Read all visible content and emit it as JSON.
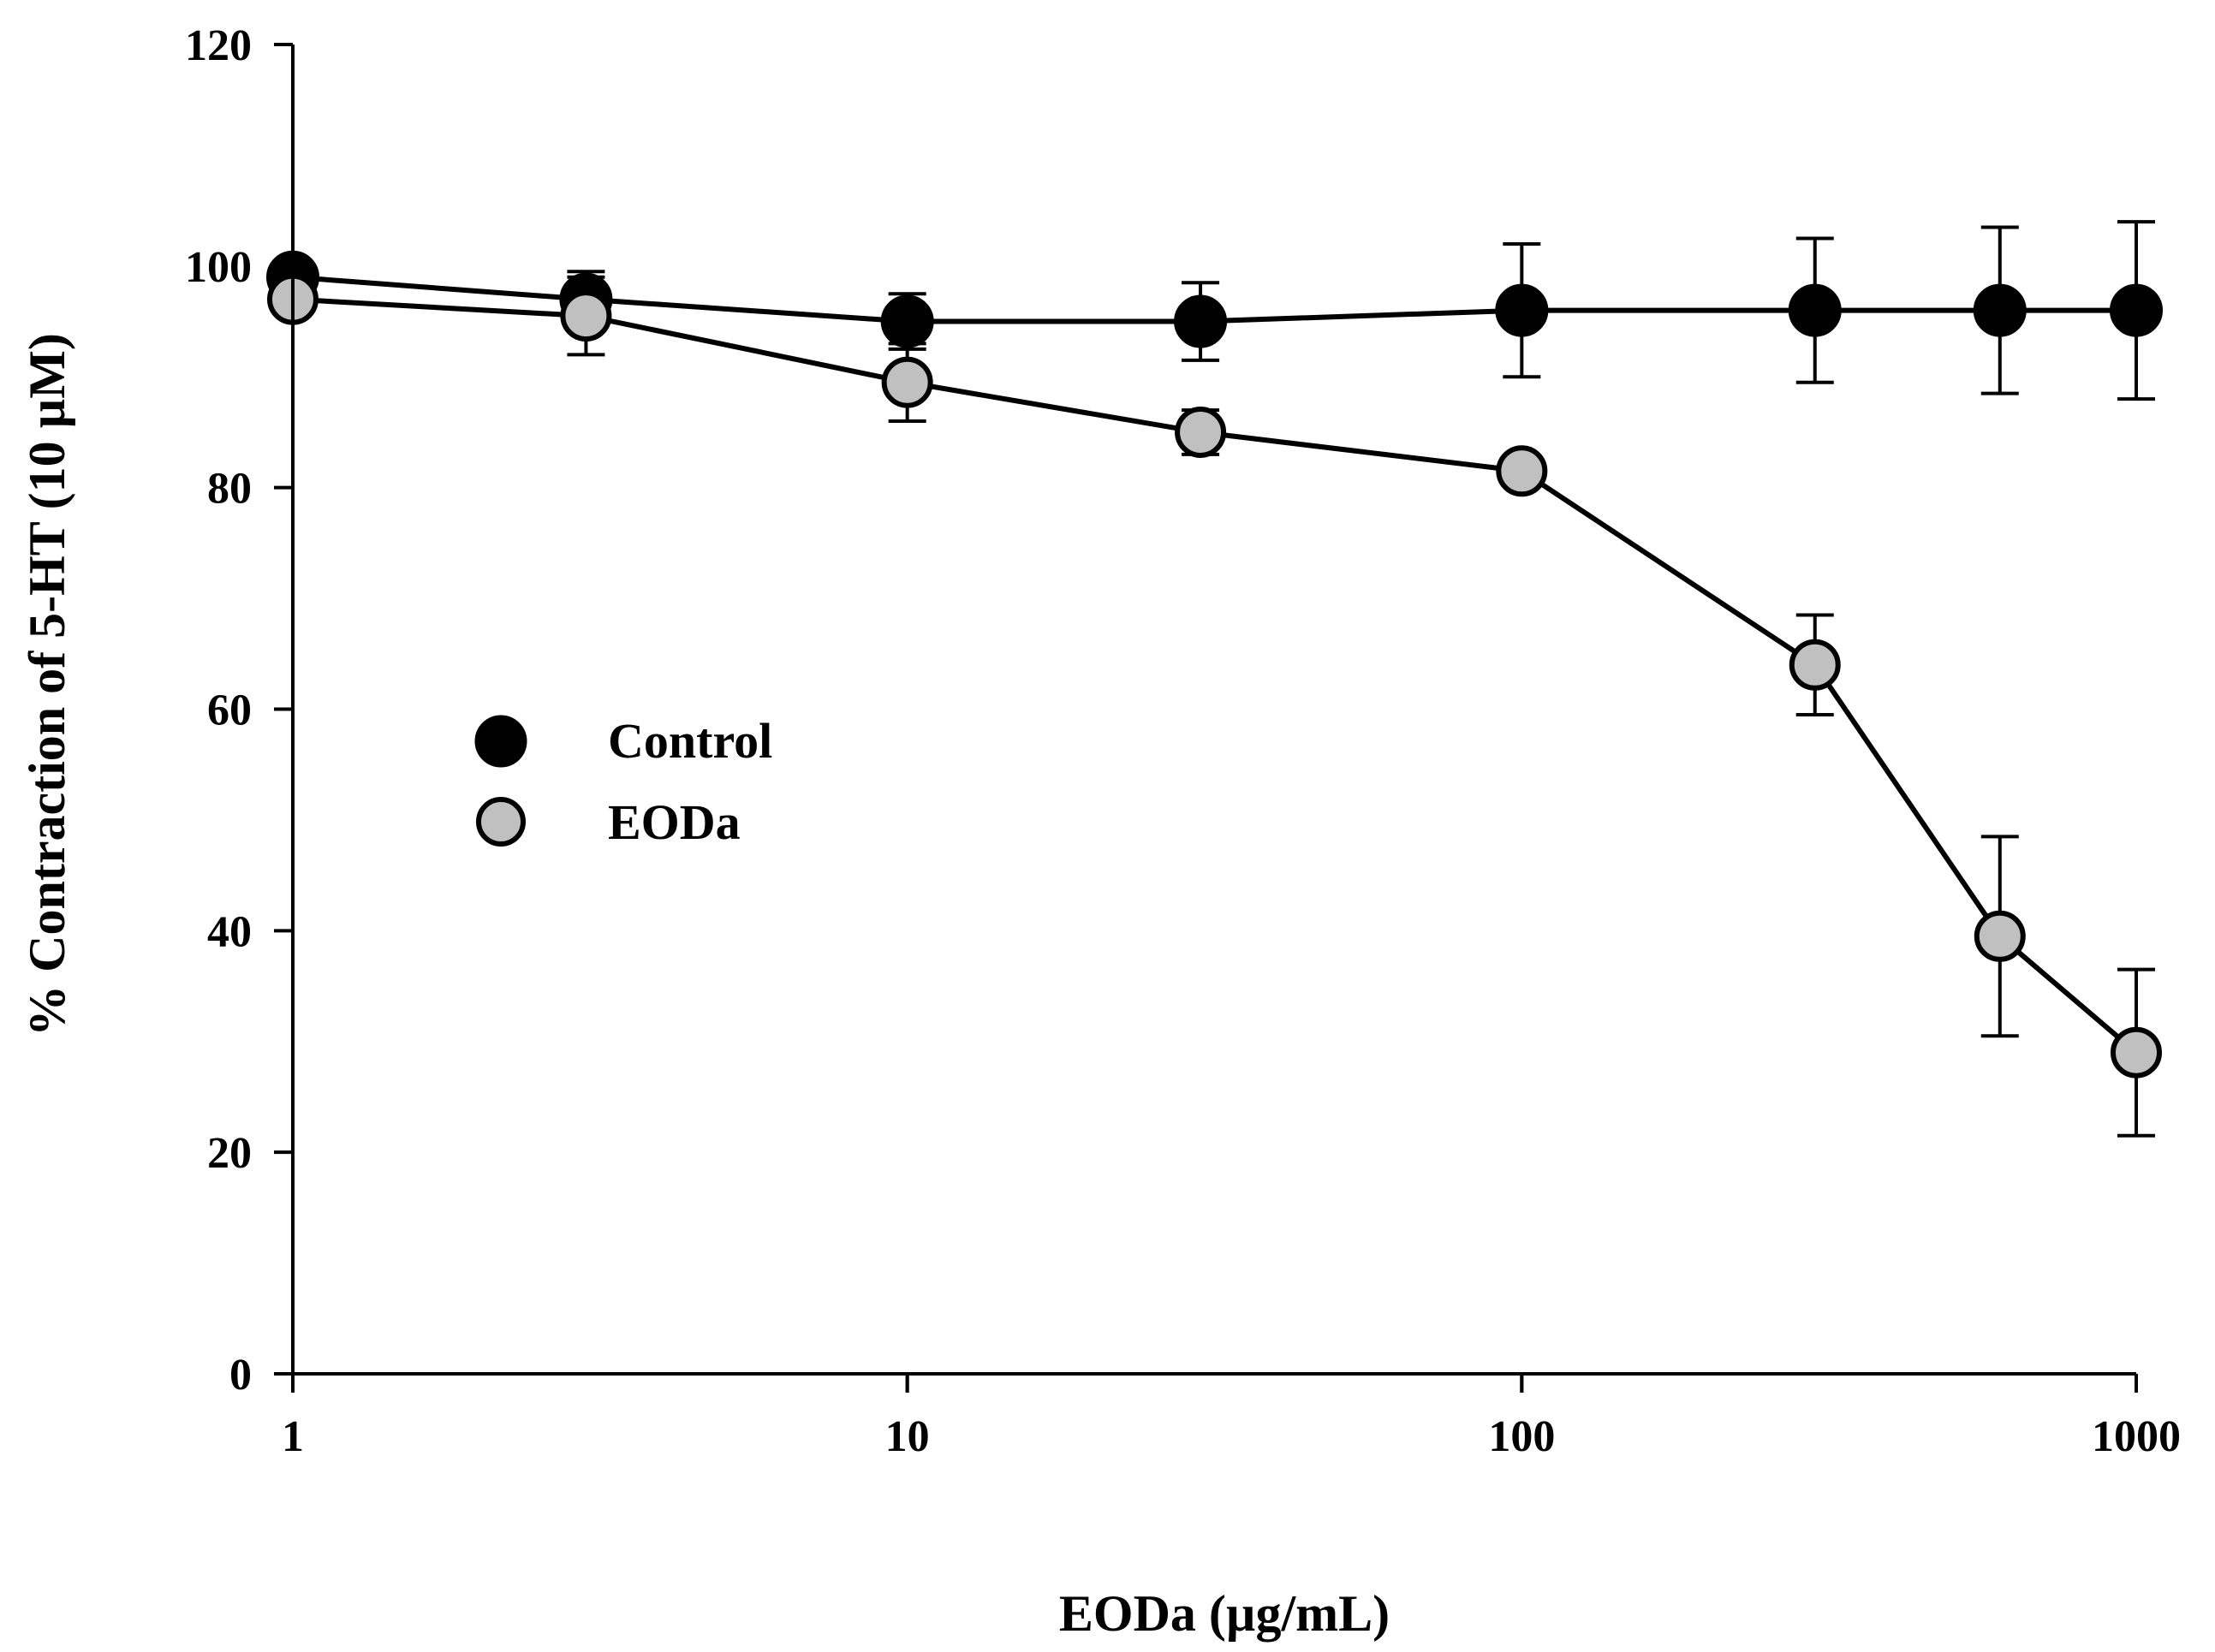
{
  "chart_data": {
    "type": "line",
    "xscale": "log",
    "xlabel": "EODa (µg/mL)",
    "ylabel": "% Contraction of 5-HT (10 µM)",
    "xlim": [
      1,
      1000
    ],
    "ylim": [
      0,
      120
    ],
    "xticks": [
      1,
      10,
      100,
      1000
    ],
    "xtick_labels": [
      "1",
      "10",
      "100",
      "1000"
    ],
    "yticks": [
      0,
      20,
      40,
      60,
      80,
      100,
      120
    ],
    "ytick_labels": [
      "0",
      "20",
      "40",
      "60",
      "80",
      "100",
      "120"
    ],
    "legend_position": "center-left",
    "series": [
      {
        "name": "Control",
        "color": "#000000",
        "x": [
          1,
          3,
          10,
          30,
          100,
          300,
          600,
          1000
        ],
        "y": [
          99,
          97,
          95,
          95,
          96,
          96,
          96,
          96
        ],
        "err": [
          0,
          2.5,
          2.5,
          3.5,
          6,
          6.5,
          7.5,
          8
        ]
      },
      {
        "name": "EODa",
        "color": "#c0c0c0",
        "x": [
          1,
          3,
          10,
          30,
          100,
          300,
          600,
          1000
        ],
        "y": [
          97,
          95.5,
          89.5,
          85,
          81.5,
          64,
          39.5,
          29
        ],
        "err": [
          0,
          3.5,
          3.5,
          2,
          0,
          4.5,
          9,
          7.5
        ]
      }
    ]
  }
}
